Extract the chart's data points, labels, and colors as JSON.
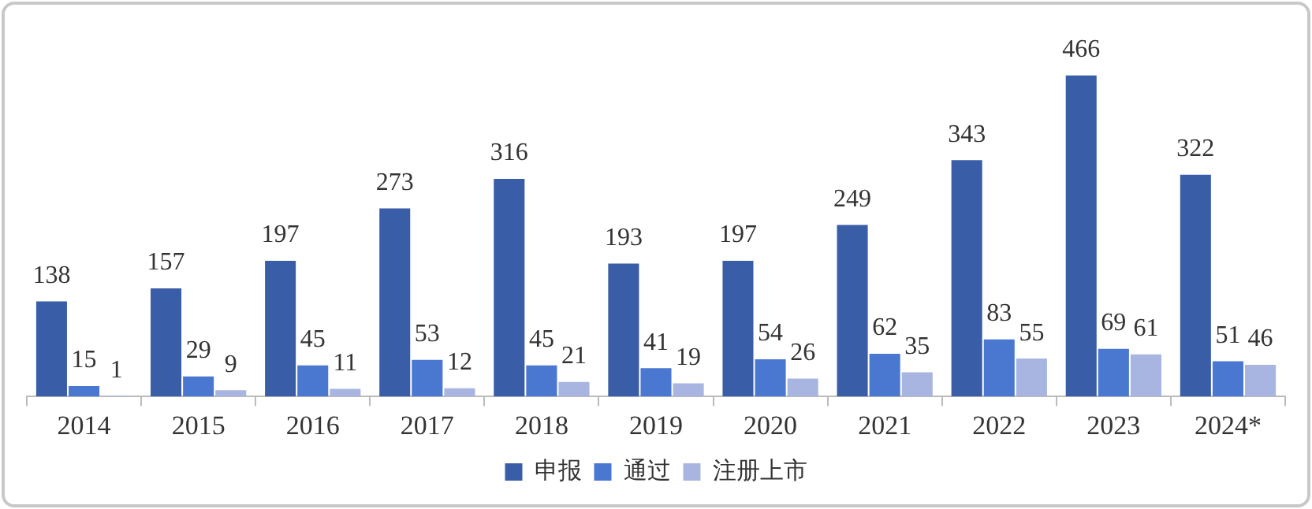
{
  "chart_data": {
    "type": "bar",
    "categories": [
      "2014",
      "2015",
      "2016",
      "2017",
      "2018",
      "2019",
      "2020",
      "2021",
      "2022",
      "2023",
      "2024*"
    ],
    "series": [
      {
        "name": "申报",
        "color": "#3a5da8",
        "values": [
          138,
          157,
          197,
          273,
          316,
          193,
          197,
          249,
          343,
          466,
          322
        ]
      },
      {
        "name": "通过",
        "color": "#4a78d0",
        "values": [
          15,
          29,
          45,
          53,
          45,
          41,
          54,
          62,
          83,
          69,
          51
        ]
      },
      {
        "name": "注册上市",
        "color": "#a8b5e0",
        "values": [
          1,
          9,
          11,
          12,
          21,
          19,
          26,
          35,
          55,
          61,
          46
        ]
      }
    ],
    "data_labels": true,
    "legend": "bottom"
  }
}
